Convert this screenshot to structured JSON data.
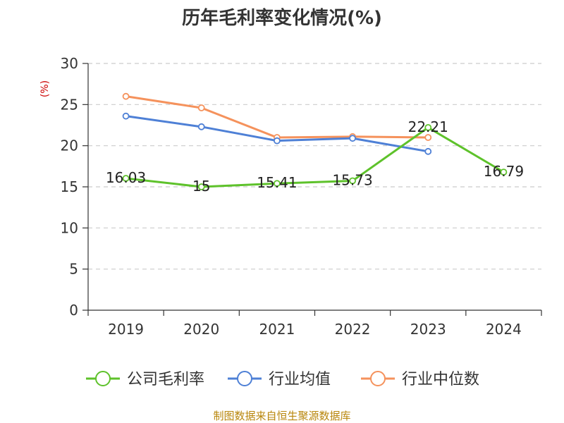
{
  "chart_data": {
    "type": "line",
    "title": "历年毛利率变化情况(%)",
    "ylabel": "(%)",
    "categories": [
      "2019",
      "2020",
      "2021",
      "2022",
      "2023",
      "2024"
    ],
    "ylim": [
      0,
      30
    ],
    "yticks": [
      "0",
      "5",
      "10",
      "15",
      "20",
      "25",
      "30"
    ],
    "grid": true,
    "legend_position": "bottom",
    "series": [
      {
        "name": "公司毛利率",
        "color": "#5ec22b",
        "values": [
          16.03,
          15,
          15.41,
          15.73,
          22.21,
          16.79
        ],
        "labels": [
          "16.03",
          "15",
          "15.41",
          "15.73",
          "22.21",
          "16.79"
        ]
      },
      {
        "name": "行业均值",
        "color": "#4e80d6",
        "values": [
          23.6,
          22.3,
          20.6,
          20.9,
          19.3,
          null
        ]
      },
      {
        "name": "行业中位数",
        "color": "#f5925c",
        "values": [
          26.0,
          24.6,
          21.0,
          21.1,
          21.0,
          null
        ]
      }
    ]
  },
  "source": "制图数据来自恒生聚源数据库"
}
